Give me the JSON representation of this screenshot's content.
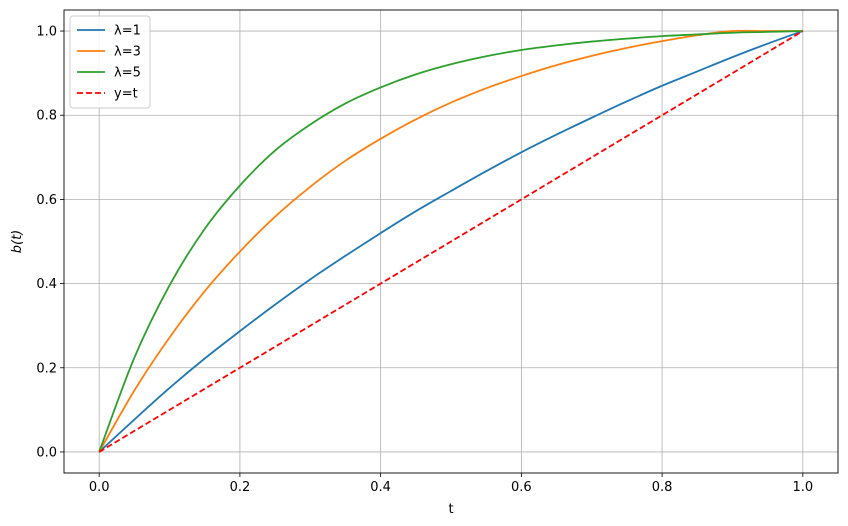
{
  "chart_data": {
    "type": "line",
    "title": "",
    "xlabel": "t",
    "ylabel": "b(t)",
    "xlim": [
      -0.05,
      1.05
    ],
    "ylim": [
      -0.05,
      1.05
    ],
    "grid": true,
    "legend_position": "top-left",
    "x_ticks": [
      0.0,
      0.2,
      0.4,
      0.6,
      0.8,
      1.0
    ],
    "x_tick_labels": [
      "0.0",
      "0.2",
      "0.4",
      "0.6",
      "0.8",
      "1.0"
    ],
    "y_ticks": [
      0.0,
      0.2,
      0.4,
      0.6,
      0.8,
      1.0
    ],
    "y_tick_labels": [
      "0.0",
      "0.2",
      "0.4",
      "0.6",
      "0.8",
      "1.0"
    ],
    "x": [
      0.0,
      0.05,
      0.1,
      0.15,
      0.2,
      0.25,
      0.3,
      0.35,
      0.4,
      0.45,
      0.5,
      0.55,
      0.6,
      0.65,
      0.7,
      0.75,
      0.8,
      0.85,
      0.9,
      0.95,
      1.0
    ],
    "series": [
      {
        "name": "λ=1",
        "color": "#1f77b4",
        "style": "solid",
        "values": [
          0.0,
          0.077,
          0.152,
          0.222,
          0.287,
          0.35,
          0.41,
          0.466,
          0.52,
          0.572,
          0.62,
          0.667,
          0.712,
          0.754,
          0.794,
          0.833,
          0.87,
          0.904,
          0.938,
          0.97,
          1.0
        ]
      },
      {
        "name": "λ=3",
        "color": "#ff7f0e",
        "style": "solid",
        "values": [
          0.0,
          0.146,
          0.272,
          0.382,
          0.476,
          0.559,
          0.63,
          0.692,
          0.744,
          0.79,
          0.83,
          0.864,
          0.893,
          0.919,
          0.941,
          0.96,
          0.976,
          0.99,
          1.003,
          1.014,
          1.0
        ]
      },
      {
        "name": "λ=5",
        "color": "#2ca02c",
        "style": "solid",
        "values": [
          0.0,
          0.224,
          0.396,
          0.53,
          0.633,
          0.716,
          0.778,
          0.828,
          0.866,
          0.897,
          0.921,
          0.94,
          0.955,
          0.966,
          0.975,
          0.982,
          0.988,
          0.992,
          0.996,
          0.998,
          1.0
        ]
      },
      {
        "name": "y=t",
        "color": "#ff0000",
        "style": "dashed",
        "values": [
          0.0,
          0.05,
          0.1,
          0.15,
          0.2,
          0.25,
          0.3,
          0.35,
          0.4,
          0.45,
          0.5,
          0.55,
          0.6,
          0.65,
          0.7,
          0.75,
          0.8,
          0.85,
          0.9,
          0.95,
          1.0
        ]
      }
    ]
  }
}
